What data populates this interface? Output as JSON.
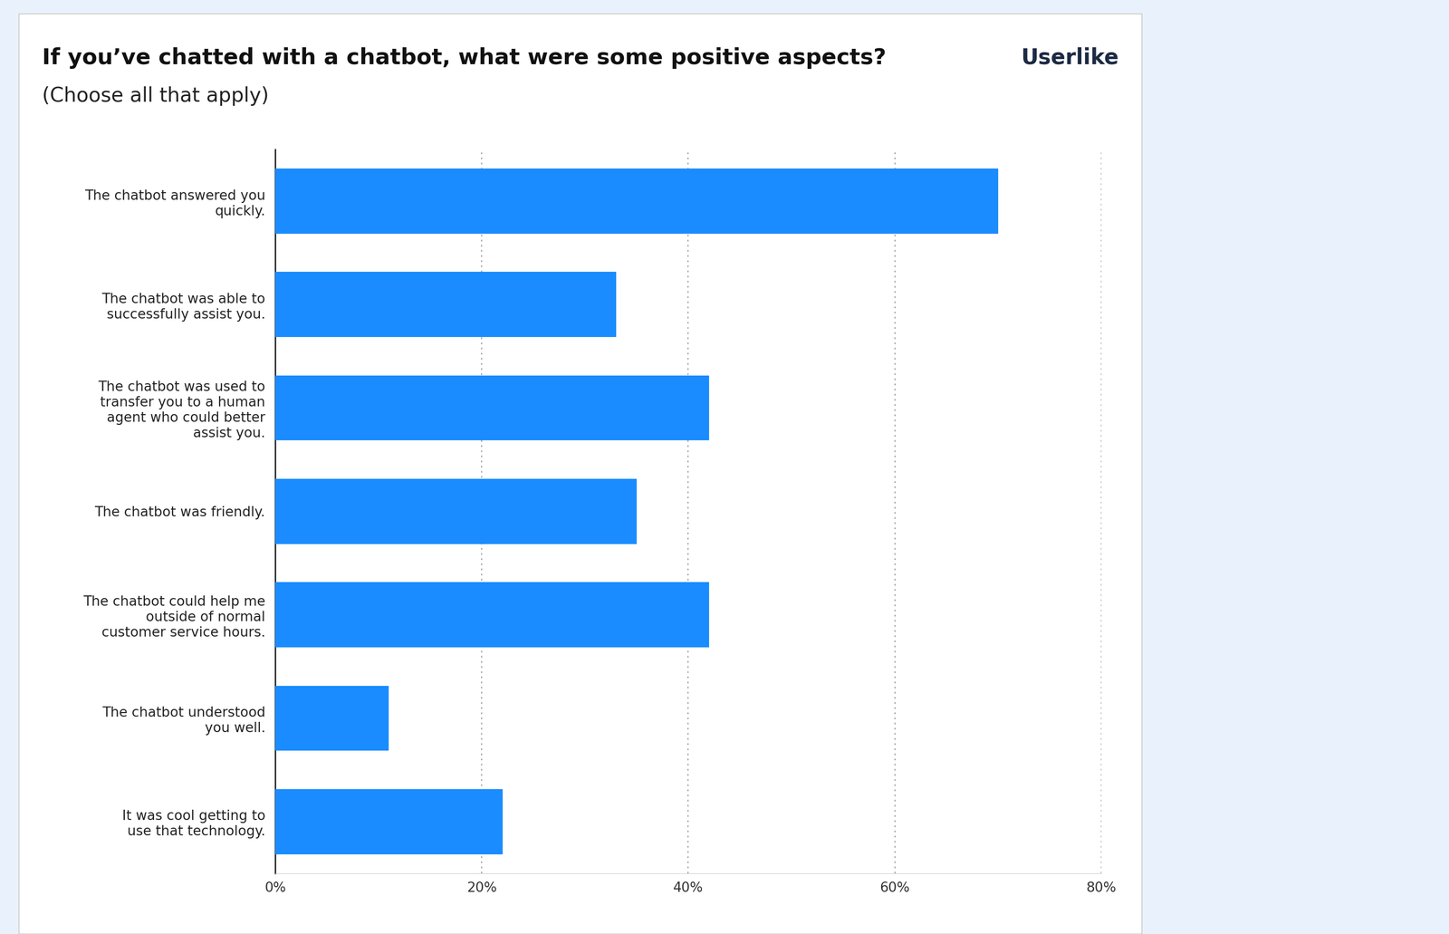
{
  "chart_data": {
    "type": "bar",
    "orientation": "horizontal",
    "title": "If you’ve chatted with a chatbot, what were some positive aspects?",
    "subtitle": "(Choose all that apply)",
    "source": "Userlike",
    "categories": [
      "The chatbot answered you quickly.",
      "The chatbot was able to successfully assist you.",
      "The chatbot was used to transfer you to a human agent who could better assist you.",
      "The chatbot was friendly.",
      "The chatbot could help me outside of normal customer service hours.",
      "The chatbot understood you well.",
      "It was cool getting to use that technology."
    ],
    "values": [
      70,
      33,
      42,
      35,
      42,
      11,
      22
    ],
    "color": "#1a8cff",
    "xlim": [
      0,
      80
    ],
    "xticks": [
      {
        "value": 0,
        "label": "0%"
      },
      {
        "value": 20,
        "label": "20%"
      },
      {
        "value": 40,
        "label": "40%"
      },
      {
        "value": 60,
        "label": "60%"
      },
      {
        "value": 80,
        "label": "80%"
      }
    ],
    "grid": true
  }
}
